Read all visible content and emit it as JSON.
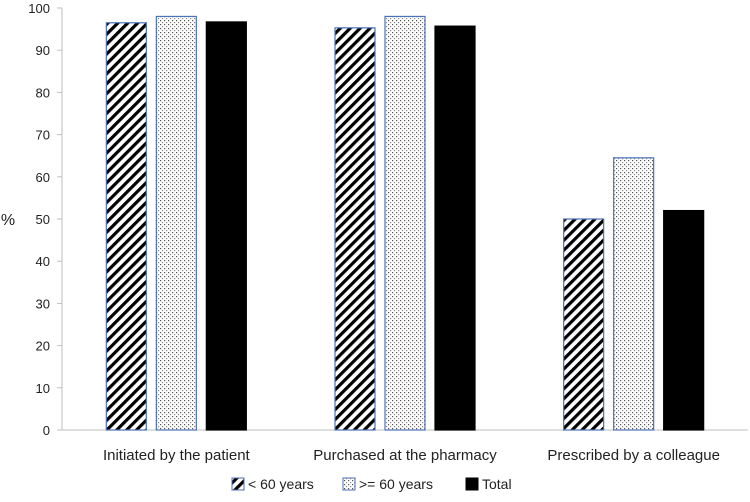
{
  "chart_data": {
    "type": "bar",
    "title": "",
    "xlabel": "",
    "ylabel": "%",
    "ylim": [
      0,
      100
    ],
    "yticks": [
      0,
      10,
      20,
      30,
      40,
      50,
      60,
      70,
      80,
      90,
      100
    ],
    "grid": false,
    "legend_position": "bottom",
    "categories": [
      "Initiated by the patient",
      "Purchased at the pharmacy",
      "Prescribed by a colleague"
    ],
    "series": [
      {
        "name": "< 60 years",
        "pattern": "diagonal-hatch",
        "values": [
          96.5,
          95.3,
          50.0
        ]
      },
      {
        "name": ">= 60 years",
        "pattern": "dotted",
        "values": [
          98.0,
          98.0,
          64.5
        ]
      },
      {
        "name": "Total",
        "pattern": "solid",
        "values": [
          96.7,
          95.7,
          52.0
        ]
      }
    ],
    "colors": {
      "solid": "#000000",
      "outline": "#4a72b8",
      "axis": "#bfbfbf"
    }
  }
}
